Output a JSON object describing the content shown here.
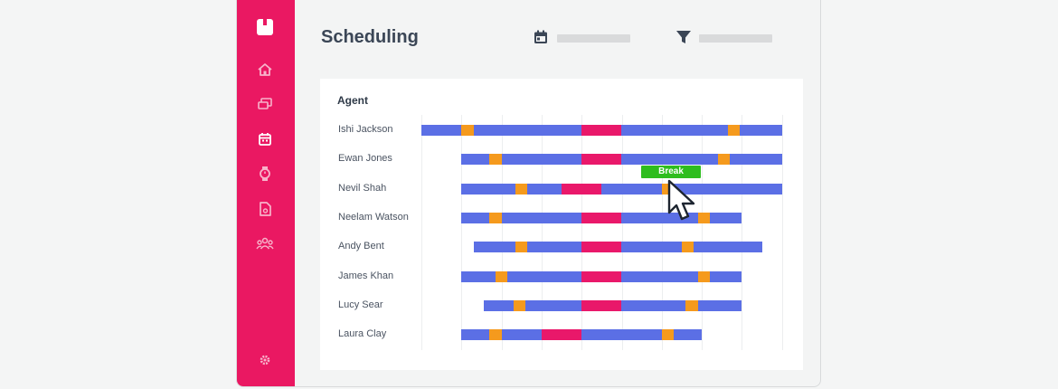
{
  "page": {
    "title": "Scheduling"
  },
  "header": {
    "date_icon": "calendar-icon",
    "filter_icon": "filter-icon"
  },
  "sidebar": {
    "logo": "app-logo-icon",
    "items": [
      {
        "icon": "home-icon",
        "active": false
      },
      {
        "icon": "schedule-board-icon",
        "active": false
      },
      {
        "icon": "calendar-icon",
        "active": true
      },
      {
        "icon": "watch-icon",
        "active": false
      },
      {
        "icon": "document-icon",
        "active": false
      },
      {
        "icon": "team-icon",
        "active": false
      }
    ],
    "settings_icon": "gear-icon"
  },
  "colors": {
    "sidebar": "#ea1862",
    "shift": "#5b6fe5",
    "break": "#f59a1d",
    "lunch": "#e9186a",
    "tooltip": "#2ebd1e"
  },
  "schedule": {
    "heading": "Agent",
    "tooltip": "Break",
    "agents": [
      {
        "name": "Ishi Jackson",
        "shift": [
          0,
          9
        ],
        "breaks": [
          [
            1.0,
            1.3
          ],
          [
            7.65,
            7.95
          ]
        ],
        "lunch": [
          4.0,
          5.0
        ]
      },
      {
        "name": "Ewan Jones",
        "shift": [
          1,
          9
        ],
        "breaks": [
          [
            1.7,
            2.0
          ],
          [
            7.4,
            7.7
          ]
        ],
        "lunch": [
          4.0,
          5.0
        ]
      },
      {
        "name": "Nevil Shah",
        "shift": [
          1,
          9
        ],
        "breaks": [
          [
            2.35,
            2.65
          ],
          [
            6.0,
            6.3
          ]
        ],
        "lunch": [
          3.5,
          4.5
        ]
      },
      {
        "name": "Neelam Watson",
        "shift": [
          1,
          8
        ],
        "breaks": [
          [
            1.7,
            2.0
          ],
          [
            6.9,
            7.2
          ]
        ],
        "lunch": [
          4.0,
          5.0
        ]
      },
      {
        "name": "Andy Bent",
        "shift": [
          1.3,
          8.5
        ],
        "breaks": [
          [
            2.35,
            2.65
          ],
          [
            6.5,
            6.8
          ]
        ],
        "lunch": [
          4.0,
          5.0
        ]
      },
      {
        "name": "James Khan",
        "shift": [
          1,
          8
        ],
        "breaks": [
          [
            1.85,
            2.15
          ],
          [
            6.9,
            7.2
          ]
        ],
        "lunch": [
          4.0,
          5.0
        ]
      },
      {
        "name": "Lucy Sear",
        "shift": [
          1.55,
          8
        ],
        "breaks": [
          [
            2.3,
            2.6
          ],
          [
            6.6,
            6.9
          ]
        ],
        "lunch": [
          4.0,
          5.0
        ]
      },
      {
        "name": "Laura Clay",
        "shift": [
          1,
          7
        ],
        "breaks": [
          [
            1.7,
            2.0
          ],
          [
            6.0,
            6.3
          ]
        ],
        "lunch": [
          3.0,
          4.0
        ]
      }
    ]
  }
}
